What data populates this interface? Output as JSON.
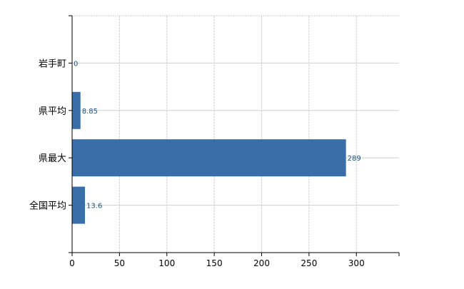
{
  "chart_data": {
    "type": "bar",
    "orientation": "horizontal",
    "categories": [
      "岩手町",
      "県平均",
      "県最大",
      "全国平均"
    ],
    "values": [
      0,
      8.85,
      289,
      13.6
    ],
    "data_labels": [
      "0",
      "8.85",
      "289",
      "13.6"
    ],
    "title": "",
    "xlabel": "",
    "ylabel": "",
    "xlim": [
      0,
      345
    ],
    "xticks": [
      0,
      50,
      100,
      150,
      200,
      250,
      300
    ],
    "xtick_labels": [
      "0",
      "50",
      "100",
      "150",
      "200",
      "250",
      "300"
    ],
    "grid": true,
    "bar_color": "#3a6ea8",
    "label_color": "#1f4f80"
  }
}
